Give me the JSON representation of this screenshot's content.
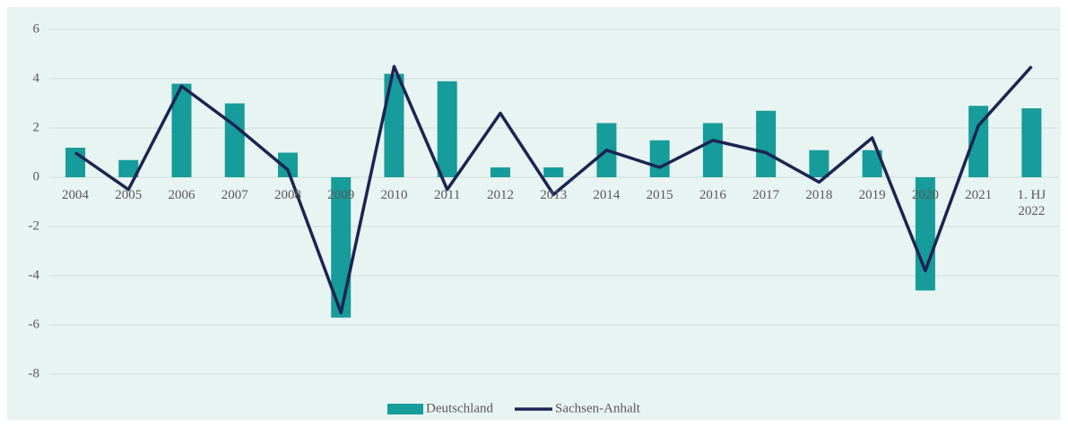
{
  "chart_data": {
    "type": "bar_line",
    "categories": [
      "2004",
      "2005",
      "2006",
      "2007",
      "2008",
      "2009",
      "2010",
      "2011",
      "2012",
      "2013",
      "2014",
      "2015",
      "2016",
      "2017",
      "2018",
      "2019",
      "2020",
      "2021",
      "1. HJ 2022"
    ],
    "series": [
      {
        "name": "Deutschland",
        "type": "bar",
        "color": "#169c9a",
        "values": [
          1.2,
          0.7,
          3.8,
          3.0,
          1.0,
          -5.7,
          4.2,
          3.9,
          0.4,
          0.4,
          2.2,
          1.5,
          2.2,
          2.7,
          1.1,
          1.1,
          -4.6,
          2.9,
          2.8
        ]
      },
      {
        "name": "Sachsen-Anhalt",
        "type": "line",
        "color": "#1c2453",
        "values": [
          1.0,
          -0.5,
          3.7,
          2.1,
          0.3,
          -5.5,
          4.5,
          -0.5,
          2.6,
          -0.7,
          1.1,
          0.4,
          1.5,
          1.0,
          -0.2,
          1.6,
          -3.8,
          2.1,
          4.5
        ]
      }
    ],
    "ylim": [
      -8,
      6
    ],
    "yticks": [
      -8,
      -6,
      -4,
      -2,
      0,
      2,
      4,
      6
    ],
    "grid": true,
    "legend": "bottom"
  }
}
